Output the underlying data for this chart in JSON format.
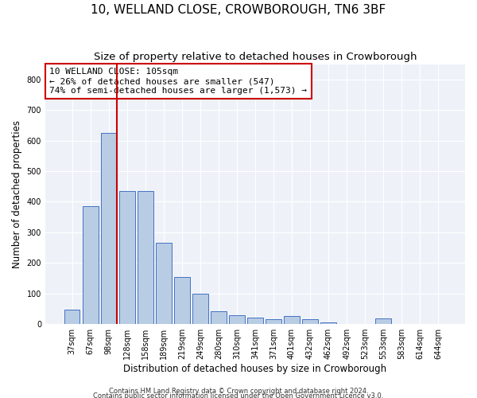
{
  "title": "10, WELLAND CLOSE, CROWBOROUGH, TN6 3BF",
  "subtitle": "Size of property relative to detached houses in Crowborough",
  "xlabel": "Distribution of detached houses by size in Crowborough",
  "ylabel": "Number of detached properties",
  "categories": [
    "37sqm",
    "67sqm",
    "98sqm",
    "128sqm",
    "158sqm",
    "189sqm",
    "219sqm",
    "249sqm",
    "280sqm",
    "310sqm",
    "341sqm",
    "371sqm",
    "401sqm",
    "432sqm",
    "462sqm",
    "492sqm",
    "523sqm",
    "553sqm",
    "583sqm",
    "614sqm",
    "644sqm"
  ],
  "values": [
    47,
    385,
    625,
    435,
    435,
    265,
    155,
    100,
    42,
    28,
    22,
    15,
    27,
    15,
    5,
    0,
    0,
    18,
    0,
    0,
    0
  ],
  "bar_color": "#b8cce4",
  "bar_edge_color": "#4472c4",
  "vline_color": "#cc0000",
  "vline_pos": 2.45,
  "annotation_text": "10 WELLAND CLOSE: 105sqm\n← 26% of detached houses are smaller (547)\n74% of semi-detached houses are larger (1,573) →",
  "annotation_box_color": "#ffffff",
  "annotation_box_edge": "#cc0000",
  "ylim": [
    0,
    850
  ],
  "yticks": [
    0,
    100,
    200,
    300,
    400,
    500,
    600,
    700,
    800
  ],
  "footer1": "Contains HM Land Registry data © Crown copyright and database right 2024.",
  "footer2": "Contains public sector information licensed under the Open Government Licence v3.0.",
  "bg_color": "#eef2f8",
  "title_fontsize": 11,
  "subtitle_fontsize": 9.5,
  "ylabel_fontsize": 8.5,
  "xlabel_fontsize": 8.5,
  "tick_fontsize": 7,
  "annot_fontsize": 8
}
